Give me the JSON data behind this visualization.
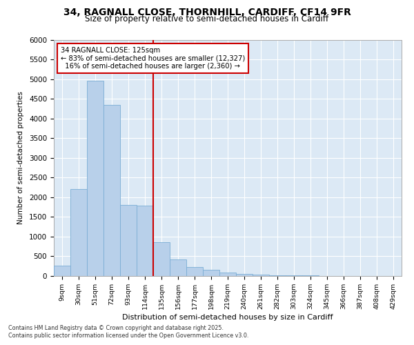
{
  "title_line1": "34, RAGNALL CLOSE, THORNHILL, CARDIFF, CF14 9FR",
  "title_line2": "Size of property relative to semi-detached houses in Cardiff",
  "xlabel": "Distribution of semi-detached houses by size in Cardiff",
  "ylabel": "Number of semi-detached properties",
  "property_label": "34 RAGNALL CLOSE: 125sqm",
  "pct_smaller": 83,
  "pct_larger": 16,
  "n_smaller": 12327,
  "n_larger": 2360,
  "bar_categories": [
    "9sqm",
    "30sqm",
    "51sqm",
    "72sqm",
    "93sqm",
    "114sqm",
    "135sqm",
    "156sqm",
    "177sqm",
    "198sqm",
    "219sqm",
    "240sqm",
    "261sqm",
    "282sqm",
    "303sqm",
    "324sqm",
    "345sqm",
    "366sqm",
    "387sqm",
    "408sqm",
    "429sqm"
  ],
  "bar_heights": [
    270,
    2200,
    4950,
    4350,
    1800,
    1780,
    850,
    420,
    220,
    150,
    80,
    50,
    30,
    20,
    15,
    10,
    8,
    5,
    3,
    2,
    1
  ],
  "bar_color": "#b8d0ea",
  "bar_edge_color": "#7aadd4",
  "vline_color": "#cc0000",
  "annotation_box_color": "#cc0000",
  "plot_bg_color": "#dce9f5",
  "ylim": [
    0,
    6000
  ],
  "yticks": [
    0,
    500,
    1000,
    1500,
    2000,
    2500,
    3000,
    3500,
    4000,
    4500,
    5000,
    5500,
    6000
  ],
  "footer_line1": "Contains HM Land Registry data © Crown copyright and database right 2025.",
  "footer_line2": "Contains public sector information licensed under the Open Government Licence v3.0."
}
